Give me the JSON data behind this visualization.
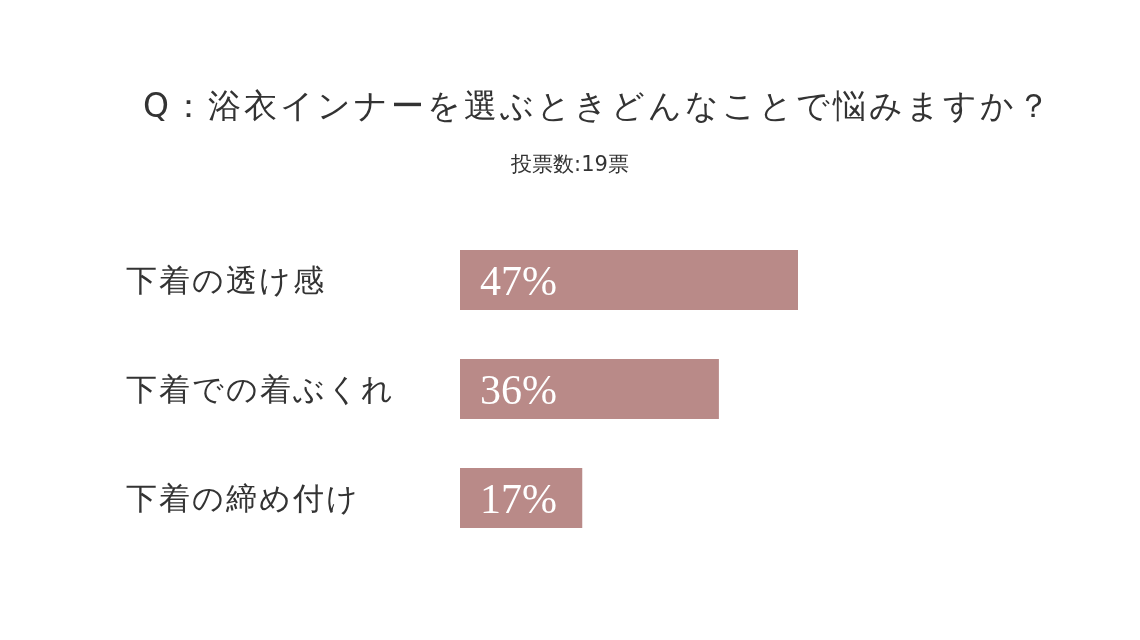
{
  "chart_data": {
    "type": "bar",
    "orientation": "horizontal",
    "title": "Q：浴衣インナーを選ぶときどんなことで悩みますか？",
    "subtitle": "投票数:19票",
    "categories": [
      "下着の透け感",
      "下着での着ぶくれ",
      "下着の締め付け"
    ],
    "values": [
      47,
      36,
      17
    ],
    "value_labels": [
      "47%",
      "36%",
      "17%"
    ],
    "color": "#b98a88"
  }
}
